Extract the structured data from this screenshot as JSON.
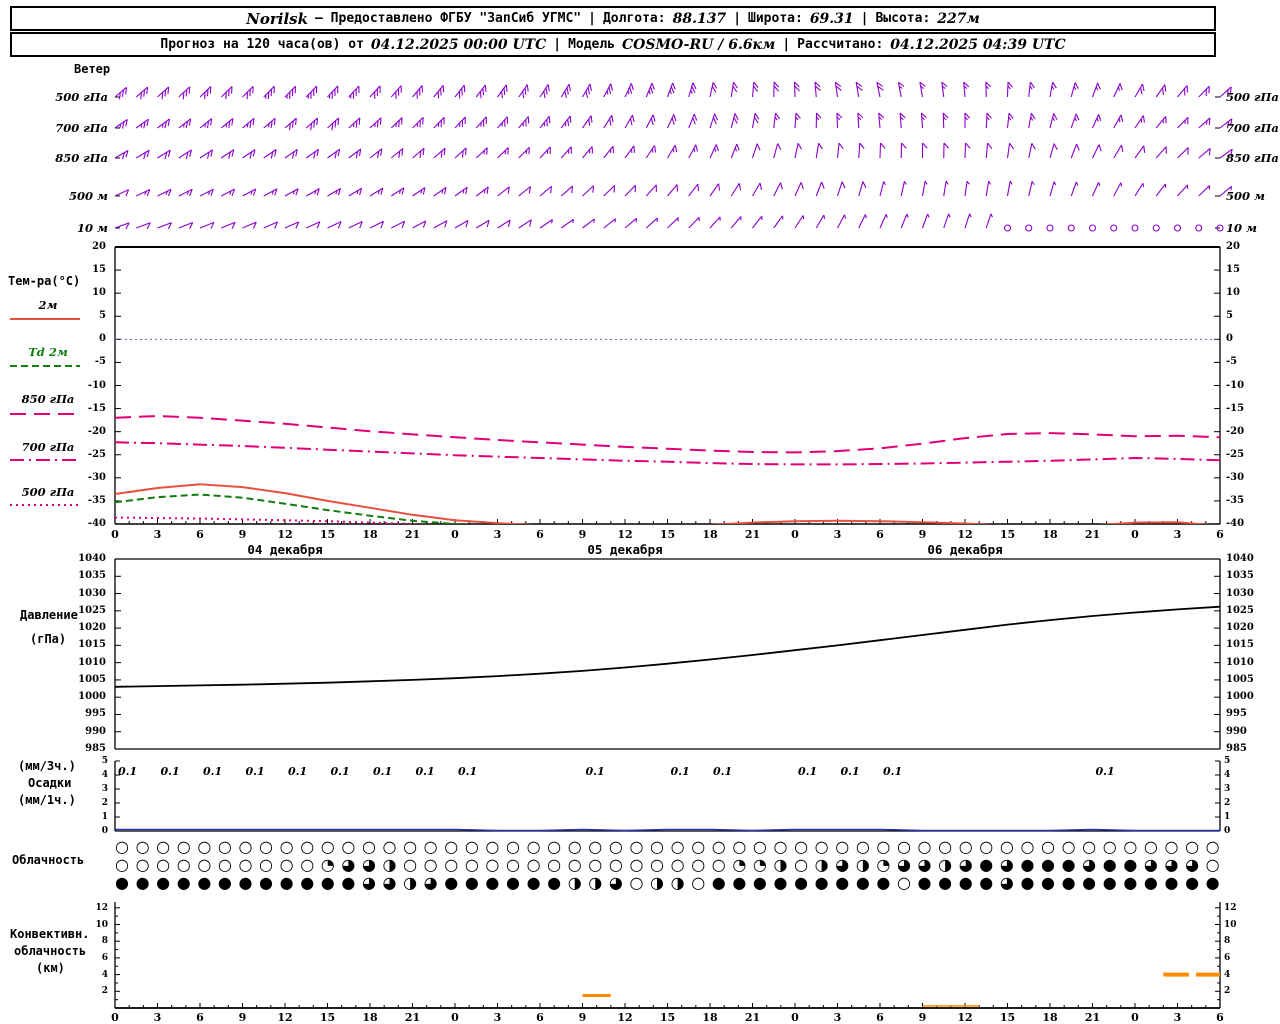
{
  "header1": {
    "station": "Norilsk",
    "provider": "— Предоставлено ФГБУ \"ЗапСиб УГМС\"",
    "sep": "|",
    "lon_label": "Долгота:",
    "lon": "88.137",
    "lat_label": "Широта:",
    "lat": "69.31",
    "alt_label": "Высота:",
    "alt": "227м"
  },
  "header2": {
    "forecast_label": "Прогноз на 120 часа(ов) от",
    "run": "04.12.2025 00:00 UTC",
    "model_label": "Модель",
    "model": "COSMO-RU / 6.6км",
    "calc_label": "Рассчитано:",
    "calc": "04.12.2025 04:39 UTC"
  },
  "labels": {
    "wind": "Ветер",
    "temp": "Тем-ра(°C)",
    "pressure1": "Давление",
    "pressure2": "(гПа)",
    "precip1": "(мм/3ч.)",
    "precip2": "Осадки",
    "precip3": "(мм/1ч.)",
    "cloud": "Облачность",
    "conv1": "Конвективн.",
    "conv2": "облачность",
    "conv3": "(км)"
  },
  "colors": {
    "barb": "#8a00cc",
    "temp_2m": "#e8503c",
    "dewpoint": "#0f7d0f",
    "isobaric": "#e00078",
    "pressure": "#000000",
    "precip_trace": "#2233bb",
    "zero_line": "#6666cc",
    "convective": "#ff8c00",
    "axis": "#000000"
  },
  "time": {
    "hours": [
      0,
      3,
      6,
      9,
      12,
      15,
      18,
      21,
      24,
      27,
      30,
      33,
      36,
      39,
      42,
      45,
      48,
      51,
      54,
      57,
      60,
      63,
      66,
      69,
      72,
      75,
      78
    ],
    "tick_labels": [
      "0",
      "3",
      "6",
      "9",
      "12",
      "15",
      "18",
      "21",
      "0",
      "3",
      "6",
      "9",
      "12",
      "15",
      "18",
      "21",
      "0",
      "3",
      "6",
      "9",
      "12",
      "15",
      "18",
      "21",
      "0",
      "3",
      "6"
    ],
    "days": [
      {
        "label": "04 декабря",
        "center_h": 12
      },
      {
        "label": "05 декабря",
        "center_h": 36
      },
      {
        "label": "06 декабря",
        "center_h": 60
      }
    ]
  },
  "chart_data": [
    {
      "type": "wind-barbs",
      "panel": "wind",
      "title": "Ветер",
      "rows": [
        {
          "level": "500 гПа",
          "dir": [
            50,
            48,
            46,
            45,
            44,
            43,
            42,
            40,
            38,
            36,
            33,
            30,
            25,
            20,
            12,
            5,
            358,
            352,
            348,
            350,
            355,
            2,
            10,
            20,
            30,
            40,
            48
          ],
          "spd": [
            30,
            30,
            32,
            32,
            34,
            34,
            32,
            32,
            30,
            30,
            28,
            28,
            26,
            24,
            22,
            20,
            20,
            18,
            18,
            16,
            16,
            15,
            15,
            16,
            18,
            20,
            22
          ]
        },
        {
          "level": "700 гПа",
          "dir": [
            55,
            53,
            51,
            50,
            49,
            48,
            47,
            45,
            43,
            41,
            38,
            35,
            30,
            25,
            18,
            10,
            4,
            358,
            355,
            356,
            0,
            6,
            14,
            24,
            34,
            44,
            52
          ],
          "spd": [
            25,
            25,
            26,
            26,
            28,
            28,
            26,
            26,
            25,
            24,
            24,
            22,
            22,
            20,
            18,
            18,
            16,
            15,
            15,
            14,
            14,
            13,
            13,
            14,
            15,
            16,
            18
          ]
        },
        {
          "level": "850 гПа",
          "dir": [
            60,
            58,
            57,
            56,
            55,
            54,
            52,
            50,
            48,
            46,
            43,
            40,
            36,
            31,
            25,
            18,
            12,
            6,
            2,
            0,
            2,
            8,
            16,
            26,
            36,
            46,
            54
          ],
          "spd": [
            20,
            20,
            22,
            22,
            22,
            20,
            20,
            18,
            18,
            16,
            16,
            15,
            15,
            14,
            13,
            12,
            12,
            11,
            10,
            10,
            10,
            9,
            9,
            10,
            10,
            11,
            12
          ]
        },
        {
          "level": "500 м",
          "dir": [
            65,
            64,
            63,
            62,
            61,
            60,
            58,
            56,
            54,
            52,
            50,
            47,
            44,
            40,
            35,
            30,
            24,
            18,
            14,
            10,
            8,
            10,
            16,
            24,
            32,
            42,
            50
          ],
          "spd": [
            12,
            13,
            14,
            14,
            15,
            15,
            14,
            14,
            13,
            12,
            12,
            11,
            10,
            10,
            9,
            9,
            8,
            8,
            7,
            7,
            6,
            6,
            5,
            5,
            6,
            6,
            7
          ]
        },
        {
          "level": "10 м",
          "dir": [
            70,
            69,
            68,
            67,
            66,
            65,
            64,
            62,
            60,
            58,
            56,
            53,
            50,
            46,
            42,
            38,
            33,
            28,
            24,
            20,
            18,
            18,
            20,
            20,
            20,
            20,
            30
          ],
          "spd": [
            8,
            9,
            10,
            10,
            10,
            10,
            9,
            9,
            8,
            8,
            7,
            7,
            6,
            6,
            5,
            5,
            5,
            4,
            4,
            3,
            3,
            2,
            0,
            0,
            0,
            0,
            2
          ]
        }
      ]
    },
    {
      "type": "line",
      "panel": "temperature",
      "title": "Тем-ра(°C)",
      "ylim": [
        -40,
        20
      ],
      "yticks": [
        20,
        15,
        10,
        5,
        0,
        -5,
        -10,
        -15,
        -20,
        -25,
        -30,
        -35,
        -40
      ],
      "zero_line": 0,
      "series": [
        {
          "name": "2м",
          "color": "#e8503c",
          "label_color": "#000000",
          "dash": "solid",
          "values": [
            -33.5,
            -32.2,
            -31.4,
            -32,
            -33.3,
            -35,
            -36.5,
            -38,
            -39.2,
            -39.8,
            -40.3,
            -40.6,
            -40.8,
            -40.7,
            -40.2,
            -39.7,
            -39.4,
            -39.3,
            -39.4,
            -39.6,
            -39.9,
            -40.4,
            -40.6,
            -40.3,
            -39.7,
            -39.6,
            -40.4
          ]
        },
        {
          "name": "Td 2м",
          "color": "#0f7d0f",
          "label_color": "#0f7d0f",
          "dash": "dashed",
          "values": [
            -35.3,
            -34.2,
            -33.6,
            -34.3,
            -35.6,
            -37,
            -38.2,
            -39.3,
            -40,
            -40.6,
            -41,
            -41.3,
            -41.5,
            -41.5,
            -41.5,
            -41.5,
            -41.5,
            -41.5,
            -41.5,
            -41.5,
            -41.5,
            -41.5,
            -41.5,
            -41.5,
            -41.5,
            -41.5,
            -41.5
          ]
        },
        {
          "name": "850 гПа",
          "color": "#e00078",
          "label_color": "#000000",
          "dash": "longdash",
          "values": [
            -17,
            -16.6,
            -17,
            -17.6,
            -18.3,
            -19.1,
            -19.9,
            -20.6,
            -21.2,
            -21.8,
            -22.3,
            -22.8,
            -23.3,
            -23.7,
            -24.1,
            -24.4,
            -24.5,
            -24.2,
            -23.6,
            -22.6,
            -21.4,
            -20.5,
            -20.3,
            -20.6,
            -21,
            -20.9,
            -21.2
          ]
        },
        {
          "name": "700 гПа",
          "color": "#e00078",
          "label_color": "#000000",
          "dash": "dashdot",
          "values": [
            -22.3,
            -22.5,
            -22.8,
            -23.1,
            -23.5,
            -23.9,
            -24.3,
            -24.7,
            -25.1,
            -25.4,
            -25.7,
            -26,
            -26.3,
            -26.5,
            -26.8,
            -27,
            -27.1,
            -27.1,
            -27,
            -26.9,
            -26.7,
            -26.5,
            -26.3,
            -26,
            -25.7,
            -25.9,
            -26.2
          ]
        },
        {
          "name": "500 гПа",
          "color": "#e00078",
          "label_color": "#000000",
          "dash": "dotted",
          "values": [
            -38.6,
            -38.7,
            -38.8,
            -39,
            -39.2,
            -39.4,
            -39.7,
            -40,
            -40.4,
            -40.8,
            -41.2,
            -41.5,
            -41.5,
            -41.5,
            -41.5,
            -41.5,
            -41.5,
            -41.5,
            -41.5,
            -41.5,
            -41.5,
            -41.5,
            -41.5,
            -41.5,
            -41.5,
            -41.5,
            -41.5
          ]
        }
      ]
    },
    {
      "type": "line",
      "panel": "pressure",
      "title": "Давление (гПа)",
      "ylim": [
        985,
        1040
      ],
      "yticks": [
        1040,
        1035,
        1030,
        1025,
        1020,
        1015,
        1010,
        1005,
        1000,
        995,
        990,
        985
      ],
      "series": [
        {
          "name": "Давление",
          "color": "#000000",
          "dash": "solid",
          "values": [
            1003,
            1003.2,
            1003.4,
            1003.6,
            1003.9,
            1004.2,
            1004.6,
            1005,
            1005.5,
            1006.1,
            1006.8,
            1007.6,
            1008.6,
            1009.7,
            1010.9,
            1012.2,
            1013.6,
            1015,
            1016.5,
            1018,
            1019.5,
            1021,
            1022.3,
            1023.5,
            1024.5,
            1025.4,
            1026.2
          ]
        }
      ]
    },
    {
      "type": "bar",
      "panel": "precipitation",
      "title": "Осадки (мм/3ч., мм/1ч.)",
      "ylim": [
        0,
        5
      ],
      "yticks": [
        5,
        4,
        3,
        2,
        1,
        0
      ],
      "values": [
        0.1,
        0.1,
        0.1,
        0.1,
        0.1,
        0.1,
        0.1,
        0.1,
        0.1,
        0,
        0,
        0.1,
        0,
        0.1,
        0.1,
        0,
        0.1,
        0.1,
        0.1,
        0,
        0,
        0,
        0,
        0.1,
        0,
        0,
        0
      ]
    },
    {
      "type": "symbols",
      "panel": "cloudiness",
      "title": "Облачность",
      "rows": [
        {
          "name": "upper",
          "octas": "000000000000000000000000000000000000000000000000000000"
        },
        {
          "name": "middle",
          "octas": "000000000026640000000000000000224046426646868886886660"
        },
        {
          "name": "lower",
          "octas": "888888888888664688888844604408888888880888868888888888"
        }
      ]
    },
    {
      "type": "segments",
      "panel": "convective",
      "title": "Конвективная облачность (км)",
      "ylim": [
        0,
        13
      ],
      "yticks": [
        12,
        10,
        8,
        6,
        4,
        2
      ],
      "segments": [
        {
          "h0": 33,
          "h1": 35,
          "km": 1.5,
          "w": 3
        },
        {
          "h0": 57,
          "h1": 61,
          "km": 0.25,
          "w": 1.5
        },
        {
          "h0": 74,
          "h1": 75.8,
          "km": 4,
          "w": 4
        },
        {
          "h0": 76.3,
          "h1": 78,
          "km": 4,
          "w": 4
        }
      ]
    }
  ]
}
